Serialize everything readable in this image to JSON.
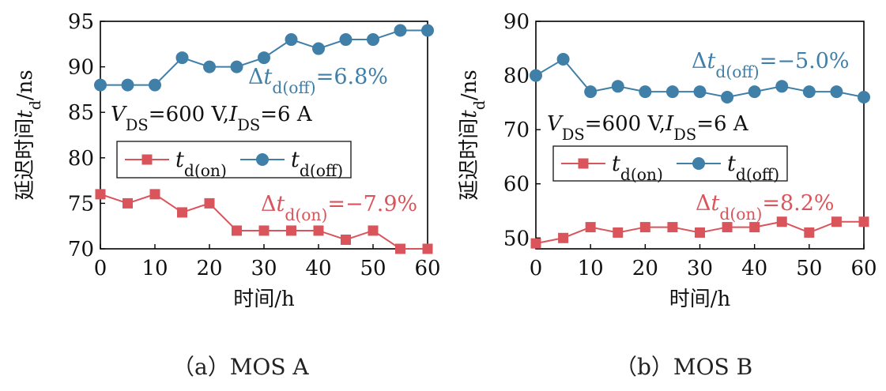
{
  "chart_data": [
    {
      "type": "line",
      "caption": "（a）MOS A",
      "xlabel": "时间/h",
      "ylabel": "延迟时间td/ns",
      "xlim": [
        0,
        60
      ],
      "ylim": [
        70,
        95
      ],
      "xticks": [
        0,
        10,
        20,
        30,
        40,
        50,
        60
      ],
      "yticks": [
        70,
        75,
        80,
        85,
        90,
        95
      ],
      "condition": "VDS=600 V,IDS=6 A",
      "legend_position": "middle-left",
      "series": [
        {
          "name": "td(on)",
          "color": "#d9545b",
          "marker": "square",
          "x": [
            0,
            5,
            10,
            15,
            20,
            25,
            30,
            35,
            40,
            45,
            50,
            55,
            60
          ],
          "values": [
            76,
            75,
            76,
            74,
            75,
            72,
            72,
            72,
            72,
            71,
            72,
            70,
            70
          ],
          "annotation": "Δtd(on)=−7.9%"
        },
        {
          "name": "td(off)",
          "color": "#3f7fa8",
          "marker": "circle",
          "x": [
            0,
            5,
            10,
            15,
            20,
            25,
            30,
            35,
            40,
            45,
            50,
            55,
            60
          ],
          "values": [
            88,
            88,
            88,
            91,
            90,
            90,
            91,
            93,
            92,
            93,
            93,
            94,
            94
          ],
          "annotation": "Δtd(off)=6.8%"
        }
      ]
    },
    {
      "type": "line",
      "caption": "（b）MOS B",
      "xlabel": "时间/h",
      "ylabel": "延迟时间td/ns",
      "xlim": [
        0,
        60
      ],
      "ylim": [
        48,
        90
      ],
      "xticks": [
        0,
        10,
        20,
        30,
        40,
        50,
        60
      ],
      "yticks": [
        50,
        60,
        70,
        80,
        90
      ],
      "condition": "VDS=600 V,IDS=6 A",
      "legend_position": "middle-left",
      "series": [
        {
          "name": "td(on)",
          "color": "#d9545b",
          "marker": "square",
          "x": [
            0,
            5,
            10,
            15,
            20,
            25,
            30,
            35,
            40,
            45,
            50,
            55,
            60
          ],
          "values": [
            49,
            50,
            52,
            51,
            52,
            52,
            51,
            52,
            52,
            53,
            51,
            53,
            53
          ],
          "annotation": "Δtd(on)=8.2%"
        },
        {
          "name": "td(off)",
          "color": "#3f7fa8",
          "marker": "circle",
          "x": [
            0,
            5,
            10,
            15,
            20,
            25,
            30,
            35,
            40,
            45,
            50,
            55,
            60
          ],
          "values": [
            80,
            83,
            77,
            78,
            77,
            77,
            77,
            76,
            77,
            78,
            77,
            77,
            76
          ],
          "annotation": "Δtd(off)=−5.0%"
        }
      ]
    }
  ]
}
